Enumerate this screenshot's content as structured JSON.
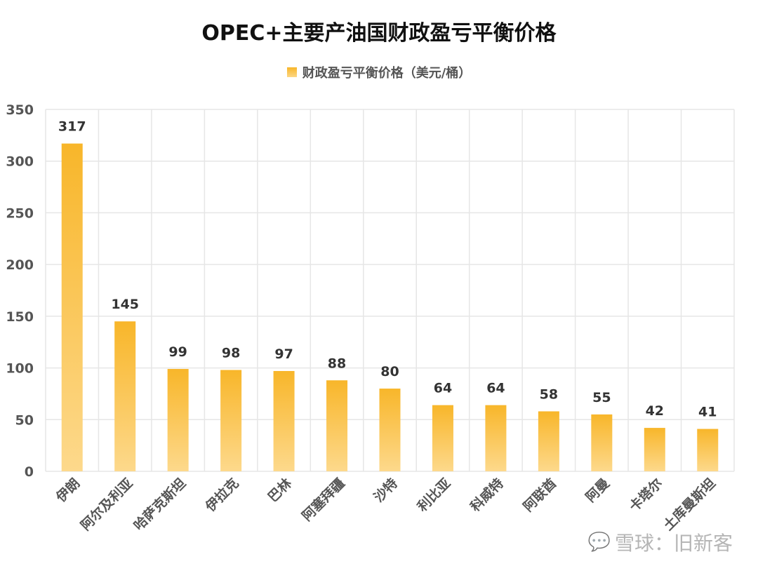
{
  "title": "OPEC+主要产油国财政盈亏平衡价格",
  "legend_label": "财政盈亏平衡价格（美元/桶）",
  "watermark": "雪球：旧新客",
  "colors": {
    "bar_top": "#f8b62a",
    "bar_bottom": "#fdd98c",
    "grid": "#e6e6e6",
    "value_label": "#333333",
    "axis_label": "#555555"
  },
  "chart_data": {
    "type": "bar",
    "title": "OPEC+主要产油国财政盈亏平衡价格",
    "categories": [
      "伊朗",
      "阿尔及利亚",
      "哈萨克斯坦",
      "伊拉克",
      "巴林",
      "阿塞拜疆",
      "沙特",
      "利比亚",
      "科威特",
      "阿联酋",
      "阿曼",
      "卡塔尔",
      "土库曼斯坦"
    ],
    "series": [
      {
        "name": "财政盈亏平衡价格（美元/桶）",
        "values": [
          317,
          145,
          99,
          98,
          97,
          88,
          80,
          64,
          64,
          58,
          55,
          42,
          41
        ]
      }
    ],
    "ylim": [
      0,
      350
    ],
    "yticks": [
      0,
      50,
      100,
      150,
      200,
      250,
      300,
      350
    ],
    "grid": true,
    "legend_position": "top"
  }
}
